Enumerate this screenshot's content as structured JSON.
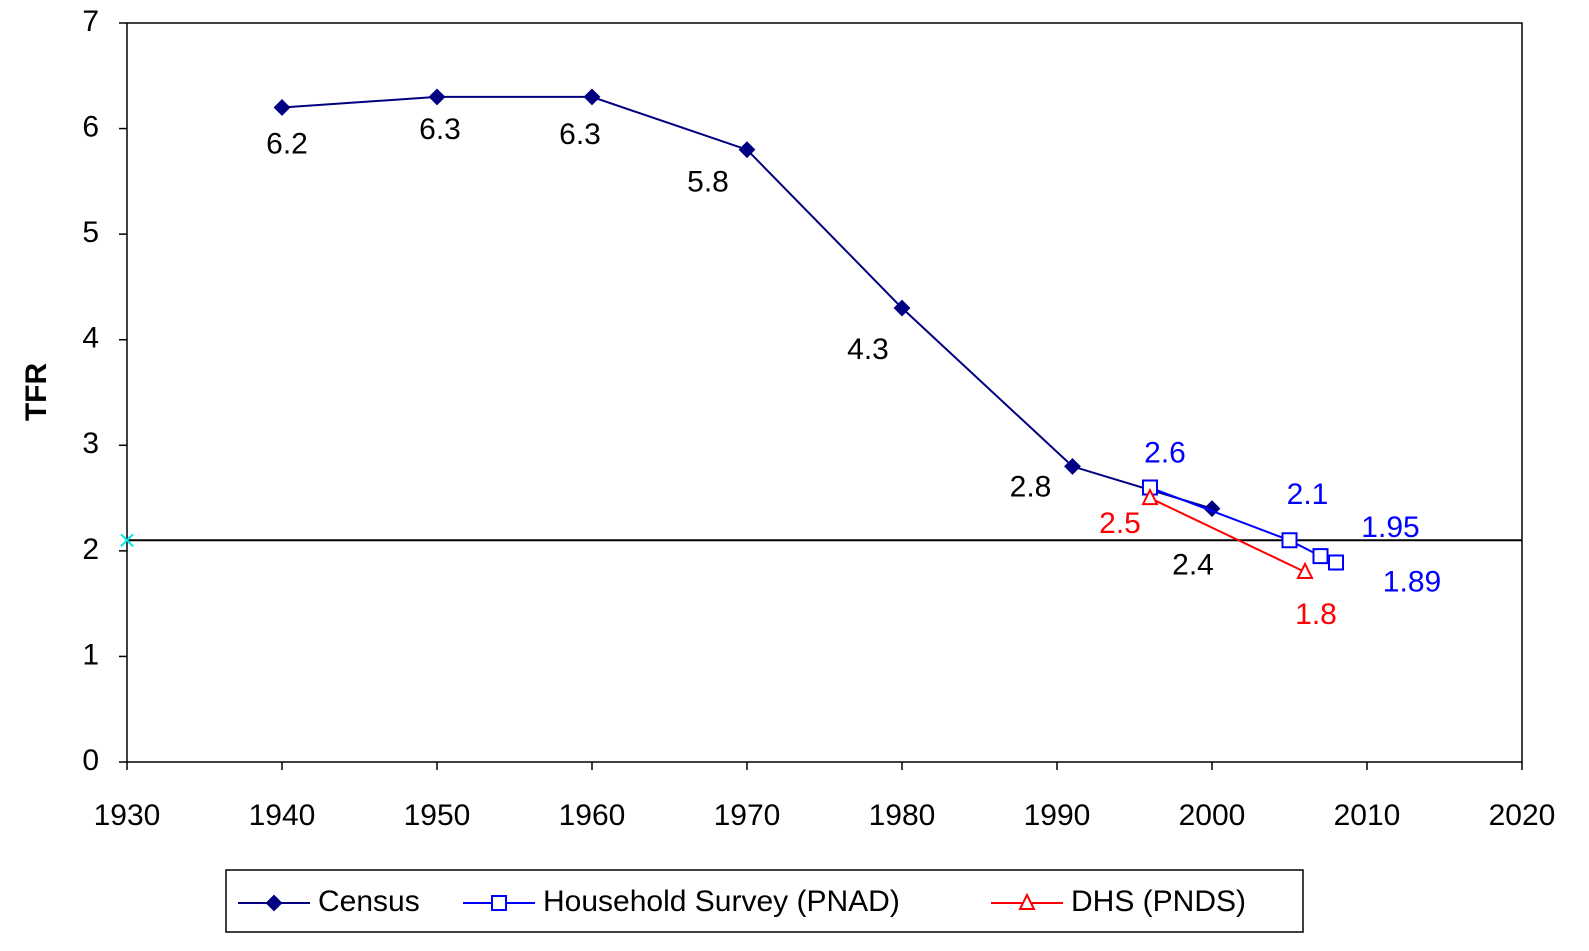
{
  "chart_data": {
    "type": "line",
    "ylabel": "TFR",
    "xlim": [
      1930,
      2020
    ],
    "xticks": [
      1930,
      1940,
      1950,
      1960,
      1970,
      1980,
      1990,
      2000,
      2010,
      2020
    ],
    "ylim": [
      0,
      7
    ],
    "yticks": [
      0,
      1,
      2,
      3,
      4,
      5,
      6,
      7
    ],
    "hline": {
      "value": 2.1,
      "color": "#000000",
      "marker_color": "#00e5e5"
    },
    "series": [
      {
        "name": "Census",
        "color": "#000080",
        "label_color": "#000000",
        "marker": "diamond",
        "x": [
          1940,
          1950,
          1960,
          1970,
          1980,
          1991,
          2000
        ],
        "values": [
          6.2,
          6.3,
          6.3,
          5.8,
          4.3,
          2.8,
          2.4
        ]
      },
      {
        "name": "Household Survey (PNAD)",
        "color": "#0000ff",
        "label_color": "#0000ff",
        "marker": "square",
        "x": [
          1996,
          2005,
          2007,
          2008
        ],
        "values": [
          2.6,
          2.1,
          1.95,
          1.89
        ]
      },
      {
        "name": "DHS (PNDS)",
        "color": "#ff0000",
        "label_color": "#ff0000",
        "marker": "triangle",
        "x": [
          1996,
          2006
        ],
        "values": [
          2.5,
          1.8
        ]
      }
    ]
  }
}
